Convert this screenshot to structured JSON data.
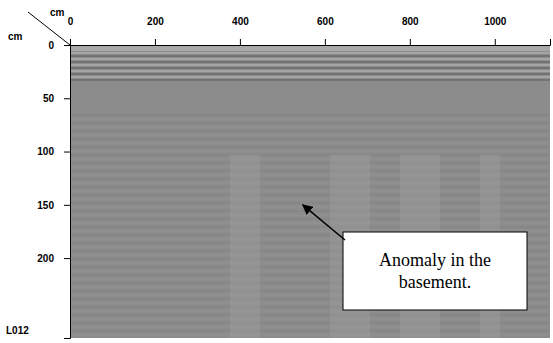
{
  "chart_data": {
    "type": "radargram",
    "x_label": "cm",
    "y_label": "cm",
    "profile": "L012",
    "xlim": [
      0,
      1130
    ],
    "xticks": [
      0,
      200,
      400,
      600,
      800,
      1000
    ],
    "ylim": [
      0,
      275
    ],
    "yticks": [
      0,
      50,
      100,
      150,
      200
    ],
    "annotations": [
      {
        "text": "Anomaly in the basement.",
        "x": 548,
        "y": 150
      }
    ]
  }
}
